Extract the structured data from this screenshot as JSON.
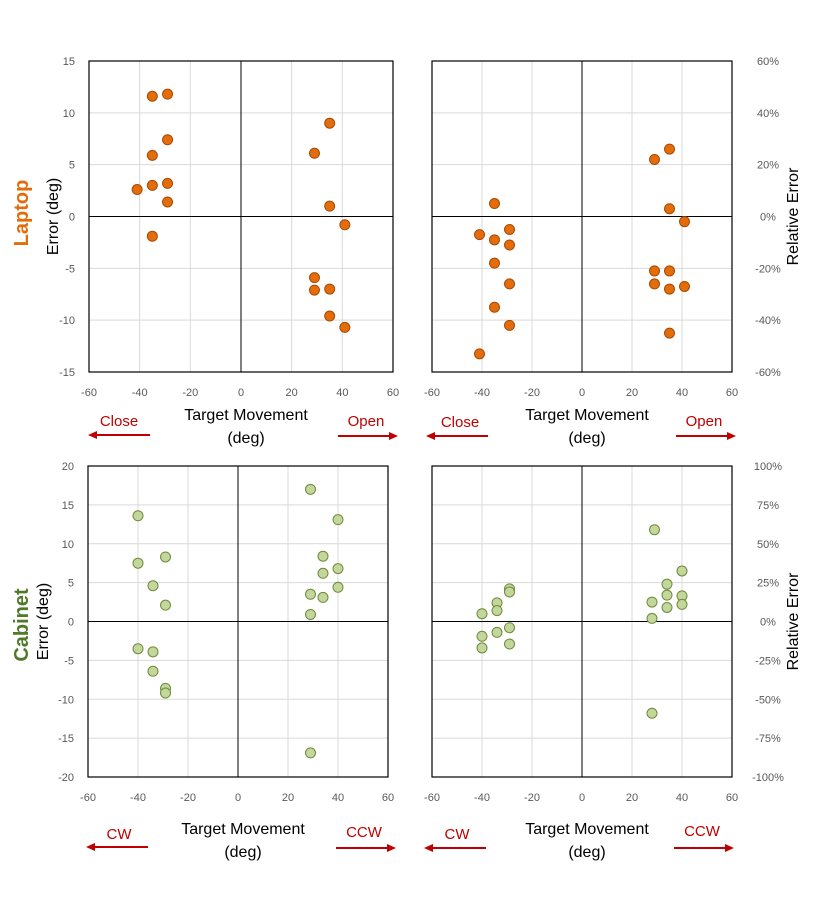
{
  "row_labels": {
    "laptop": "Laptop",
    "cabinet": "Cabinet"
  },
  "colors": {
    "laptop_fill": "#e46c0a",
    "laptop_stroke": "#a34b06",
    "cabinet_fill": "#c3d69b",
    "cabinet_stroke": "#6f8a3a",
    "arrow": "#c00000",
    "laptop_label": "#e46c0a",
    "cabinet_label": "#4f7a28"
  },
  "direction_labels": {
    "top_left": "Close",
    "top_right": "Open",
    "bottom_left": "CW",
    "bottom_right": "CCW"
  },
  "chart_data": [
    {
      "id": "laptop-abs",
      "type": "scatter",
      "title": "",
      "xlabel": "Target Movement (deg)",
      "xlabel_lines": [
        "Target Movement",
        "(deg)"
      ],
      "ylabel": "Error (deg)",
      "xlim": [
        -60,
        60
      ],
      "ylim": [
        -15,
        15
      ],
      "xticks": [
        -60,
        -40,
        -20,
        0,
        20,
        40,
        60
      ],
      "xtick_labels": [
        "-60",
        "-40",
        "-20",
        "0",
        "20",
        "40",
        "60"
      ],
      "yticks": [
        -15,
        -10,
        -5,
        0,
        5,
        10,
        15
      ],
      "ytick_labels": [
        "-15",
        "-10",
        "-5",
        "0",
        "5",
        "10",
        "15"
      ],
      "ylabel_side": "left",
      "grid": true,
      "series": [
        {
          "name": "Laptop",
          "x": [
            -35,
            -29,
            -29,
            -35,
            -29,
            -35,
            -41,
            -29,
            -35,
            29,
            35,
            35,
            41,
            29,
            29,
            35,
            35,
            41
          ],
          "y": [
            11.6,
            11.8,
            7.4,
            5.9,
            3.2,
            3.0,
            2.6,
            1.4,
            -1.9,
            6.1,
            9.0,
            1.0,
            -0.8,
            -5.9,
            -7.1,
            -7.0,
            -9.6,
            -10.7
          ]
        }
      ]
    },
    {
      "id": "laptop-rel",
      "type": "scatter",
      "title": "",
      "xlabel": "Target Movement (deg)",
      "xlabel_lines": [
        "Target Movement",
        "(deg)"
      ],
      "ylabel": "Relative Error",
      "xlim": [
        -60,
        60
      ],
      "ylim": [
        -0.6,
        0.6
      ],
      "xticks": [
        -60,
        -40,
        -20,
        0,
        20,
        40,
        60
      ],
      "xtick_labels": [
        "-60",
        "-40",
        "-20",
        "0",
        "20",
        "40",
        "60"
      ],
      "yticks": [
        -0.6,
        -0.4,
        -0.2,
        0,
        0.2,
        0.4,
        0.6
      ],
      "ytick_labels": [
        "-60%",
        "-40%",
        "-20%",
        "0%",
        "20%",
        "40%",
        "60%"
      ],
      "ylabel_side": "right",
      "grid": true,
      "series": [
        {
          "name": "Laptop",
          "x": [
            -35,
            -41,
            -35,
            -29,
            -29,
            -35,
            -29,
            -35,
            -29,
            -41,
            29,
            35,
            35,
            41,
            29,
            35,
            29,
            35,
            41,
            35
          ],
          "y": [
            0.05,
            -0.07,
            -0.09,
            -0.05,
            -0.11,
            -0.18,
            -0.26,
            -0.35,
            -0.42,
            -0.53,
            0.22,
            0.26,
            0.03,
            -0.02,
            -0.21,
            -0.21,
            -0.26,
            -0.28,
            -0.27,
            -0.45
          ]
        }
      ]
    },
    {
      "id": "cabinet-abs",
      "type": "scatter",
      "title": "",
      "xlabel": "Target Movement (deg)",
      "xlabel_lines": [
        "Target Movement",
        "(deg)"
      ],
      "ylabel": "Error (deg)",
      "xlim": [
        -60,
        60
      ],
      "ylim": [
        -20,
        20
      ],
      "xticks": [
        -60,
        -40,
        -20,
        0,
        20,
        40,
        60
      ],
      "xtick_labels": [
        "-60",
        "-40",
        "-20",
        "0",
        "20",
        "40",
        "60"
      ],
      "yticks": [
        -20,
        -15,
        -10,
        -5,
        0,
        5,
        10,
        15,
        20
      ],
      "ytick_labels": [
        "-20",
        "-15",
        "-10",
        "-5",
        "0",
        "5",
        "10",
        "15",
        "20"
      ],
      "ylabel_side": "left",
      "grid": true,
      "series": [
        {
          "name": "Cabinet",
          "x": [
            -40,
            -40,
            -29,
            -34,
            -29,
            -40,
            -34,
            -34,
            -29,
            -29,
            29,
            40,
            34,
            34,
            40,
            40,
            29,
            34,
            29,
            29
          ],
          "y": [
            13.6,
            7.5,
            8.3,
            4.6,
            2.1,
            -3.5,
            -3.9,
            -6.4,
            -8.6,
            -9.2,
            17.0,
            13.1,
            8.4,
            6.2,
            6.8,
            4.4,
            3.5,
            3.1,
            0.9,
            -16.9
          ]
        }
      ]
    },
    {
      "id": "cabinet-rel",
      "type": "scatter",
      "title": "",
      "xlabel": "Target Movement (deg)",
      "xlabel_lines": [
        "Target Movement",
        "(deg)"
      ],
      "ylabel": "Relative Error",
      "xlim": [
        -60,
        60
      ],
      "ylim": [
        -1.0,
        1.0
      ],
      "xticks": [
        -60,
        -40,
        -20,
        0,
        20,
        40,
        60
      ],
      "xtick_labels": [
        "-60",
        "-40",
        "-20",
        "0",
        "20",
        "40",
        "60"
      ],
      "yticks": [
        -1.0,
        -0.75,
        -0.5,
        -0.25,
        0,
        0.25,
        0.5,
        0.75,
        1.0
      ],
      "ytick_labels": [
        "-100%",
        "-75%",
        "-50%",
        "-25%",
        "0%",
        "25%",
        "50%",
        "75%",
        "100%"
      ],
      "ylabel_side": "right",
      "grid": true,
      "series": [
        {
          "name": "Cabinet",
          "x": [
            -29,
            -29,
            -34,
            -34,
            -40,
            -29,
            -34,
            -40,
            -29,
            -40,
            29,
            40,
            34,
            34,
            40,
            28,
            40,
            34,
            28,
            28
          ],
          "y": [
            0.21,
            0.19,
            0.12,
            0.07,
            0.05,
            -0.04,
            -0.07,
            -0.095,
            -0.145,
            -0.17,
            0.59,
            0.325,
            0.24,
            0.17,
            0.165,
            0.125,
            0.11,
            0.09,
            0.02,
            -0.59
          ]
        }
      ]
    }
  ]
}
